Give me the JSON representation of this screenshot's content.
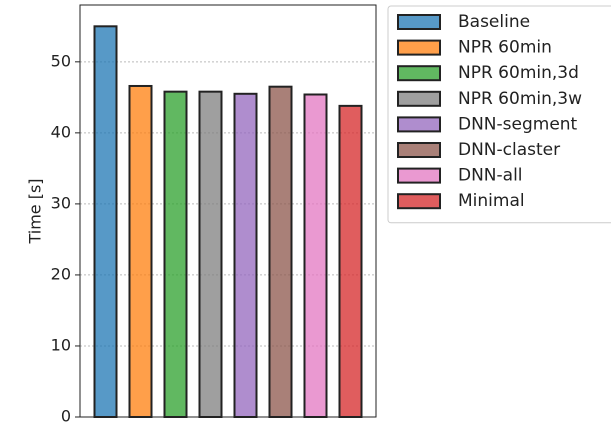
{
  "chart_data": {
    "type": "bar",
    "categories": [
      null
    ],
    "ylabel": "Time [s]",
    "ylim": [
      0,
      58
    ],
    "yticks": [
      0,
      10,
      20,
      30,
      40,
      50
    ],
    "grid": true,
    "legend": "outside-right",
    "series": [
      {
        "name": "Baseline",
        "color": "#1f77b4",
        "values": [
          55
        ]
      },
      {
        "name": "NPR 60min",
        "color": "#ff7f0e",
        "values": [
          46.6
        ]
      },
      {
        "name": "NPR 60min,3d",
        "color": "#2ca02c",
        "values": [
          45.8
        ]
      },
      {
        "name": "NPR 60min,3w",
        "color": "#7f7f7f",
        "values": [
          45.8
        ]
      },
      {
        "name": "DNN-segment",
        "color": "#9467bd",
        "values": [
          45.5
        ]
      },
      {
        "name": "DNN-claster",
        "color": "#8c564b",
        "values": [
          46.5
        ]
      },
      {
        "name": "DNN-all",
        "color": "#e377c2",
        "values": [
          45.4
        ]
      },
      {
        "name": "Minimal",
        "color": "#d62728",
        "values": [
          43.8
        ]
      }
    ]
  }
}
